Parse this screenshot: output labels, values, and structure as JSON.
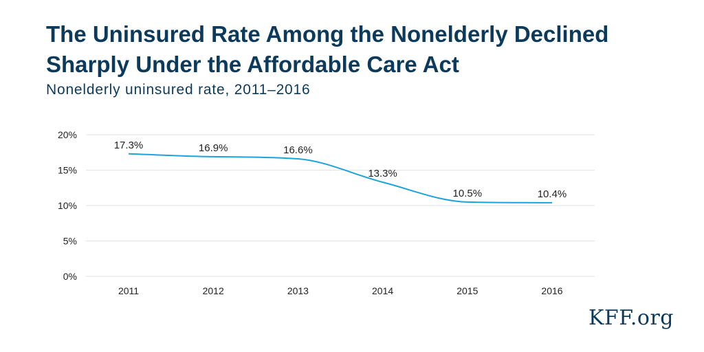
{
  "title_lines": [
    "The Uninsured Rate Among the Nonelderly Declined",
    "Sharply Under the Affordable Care Act"
  ],
  "subtitle": "Nonelderly uninsured rate, 2011–2016",
  "logo": "KFF.org",
  "chart_data": {
    "type": "line",
    "categories": [
      "2011",
      "2012",
      "2013",
      "2014",
      "2015",
      "2016"
    ],
    "series": [
      {
        "values": [
          17.3,
          16.9,
          16.6,
          13.3,
          10.5,
          10.4
        ],
        "color": "#1aa3dd"
      }
    ],
    "data_labels": [
      "17.3%",
      "16.9%",
      "16.6%",
      "13.3%",
      "10.5%",
      "10.4%"
    ],
    "y_ticks": [
      "0%",
      "5%",
      "10%",
      "15%",
      "20%"
    ],
    "ylim": [
      0,
      20
    ],
    "grid": true,
    "gridline_color": "#e2e2e2",
    "text_color": "#222222"
  }
}
